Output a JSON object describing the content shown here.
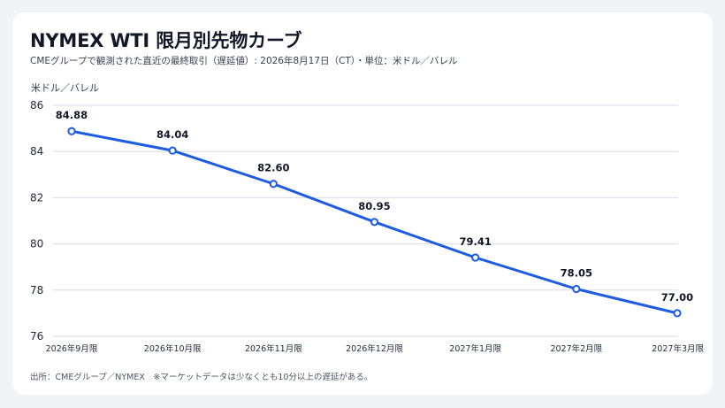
{
  "header": {
    "title": "NYMEX WTI 限月別先物カーブ",
    "subtitle": "CMEグループで観測された直近の最終取引（遅延値）: 2026年8月17日（CT）・単位：米ドル／バレル"
  },
  "footer": {
    "source": "出所：CMEグループ／NYMEX　※マーケットデータは少なくとも10分以上の遅延がある。"
  },
  "colors": {
    "line": "#1d5ce0",
    "grid": "#d6dbe6",
    "text": "#1f2937"
  },
  "chart_data": {
    "type": "line",
    "title": "NYMEX WTI 限月別先物カーブ",
    "ylabel": "米ドル／バレル",
    "xlabel": "",
    "categories": [
      "2026年9月限",
      "2026年10月限",
      "2026年11月限",
      "2026年12月限",
      "2027年1月限",
      "2027年2月限",
      "2027年3月限"
    ],
    "values": [
      84.88,
      84.04,
      82.6,
      80.95,
      79.41,
      78.05,
      77.0
    ],
    "value_labels": [
      "84.88",
      "84.04",
      "82.60",
      "80.95",
      "79.41",
      "78.05",
      "77.00"
    ],
    "ylim": [
      76,
      86
    ],
    "yticks": [
      76,
      78,
      80,
      82,
      84,
      86
    ],
    "grid": true,
    "legend": "none"
  }
}
